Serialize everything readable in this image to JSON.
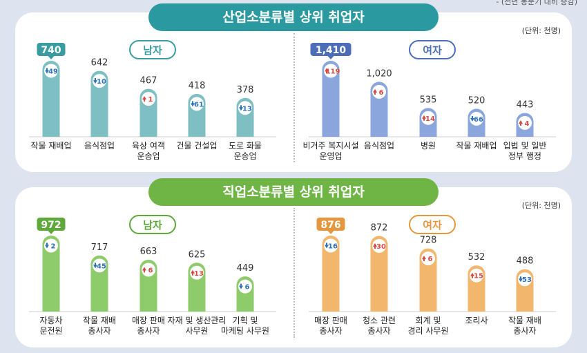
{
  "corner_note": "- (전년 동분기 대비 증감)",
  "colors": {
    "teal": "#7ebfc3",
    "teal_dark": "#3a9ca3",
    "blue": "#8aa6dc",
    "blue_dark": "#4c6db7",
    "green": "#8ecb6a",
    "green_dark": "#5fa83b",
    "orange": "#f3b66d",
    "orange_dark": "#e4973e",
    "up": "#d94a43",
    "down": "#2d73b8"
  },
  "panel1": {
    "banner": "산업소분류별 상위 취업자",
    "unit": "(단위: 천명)"
  },
  "panel2": {
    "banner": "직업소분류별 상위 취업자",
    "unit": "(단위: 천명)"
  },
  "chart_data": [
    {
      "type": "bar",
      "title": "남자",
      "color_key": "teal",
      "ylim": [
        0,
        1500
      ],
      "categories": [
        "작물 재배업",
        "음식점업",
        "육상 여객\n운송업",
        "건물 건설업",
        "도로 화물\n운송업"
      ],
      "values": [
        740,
        642,
        467,
        418,
        378
      ],
      "value_labels": [
        "740",
        "642",
        "467",
        "418",
        "378"
      ],
      "changes": [
        49,
        10,
        1,
        61,
        13
      ],
      "change_direction": [
        "down",
        "down",
        "up",
        "down",
        "down"
      ]
    },
    {
      "type": "bar",
      "title": "여자",
      "color_key": "blue",
      "ylim": [
        0,
        1500
      ],
      "categories": [
        "비거주 복지시설\n운영업",
        "음식점업",
        "병원",
        "작물 재배업",
        "입법 및 일반\n정부 행정"
      ],
      "values": [
        1410,
        1020,
        535,
        520,
        443
      ],
      "value_labels": [
        "1,410",
        "1,020",
        "535",
        "520",
        "443"
      ],
      "changes": [
        119,
        6,
        14,
        66,
        4
      ],
      "change_direction": [
        "up",
        "up",
        "up",
        "down",
        "up"
      ]
    },
    {
      "type": "bar",
      "title": "남자",
      "color_key": "green",
      "ylim": [
        0,
        1000
      ],
      "categories": [
        "자동차\n운전원",
        "작물 재배\n종사자",
        "매장 판매\n종사자",
        "자재 및 생산관리\n사무원",
        "기획 및\n마케팅 사무원"
      ],
      "values": [
        972,
        717,
        663,
        625,
        449
      ],
      "value_labels": [
        "972",
        "717",
        "663",
        "625",
        "449"
      ],
      "changes": [
        2,
        45,
        6,
        13,
        6
      ],
      "change_direction": [
        "down",
        "down",
        "up",
        "up",
        "down"
      ]
    },
    {
      "type": "bar",
      "title": "여자",
      "color_key": "orange",
      "ylim": [
        0,
        1000
      ],
      "categories": [
        "매장 판매\n종사자",
        "청소 관련\n종사자",
        "회계 및\n경리 사무원",
        "조리사",
        "작물 재배\n종사자"
      ],
      "values": [
        876,
        872,
        728,
        532,
        488
      ],
      "value_labels": [
        "876",
        "872",
        "728",
        "532",
        "488"
      ],
      "changes": [
        16,
        30,
        6,
        15,
        53
      ],
      "change_direction": [
        "down",
        "up",
        "up",
        "up",
        "down"
      ]
    }
  ]
}
